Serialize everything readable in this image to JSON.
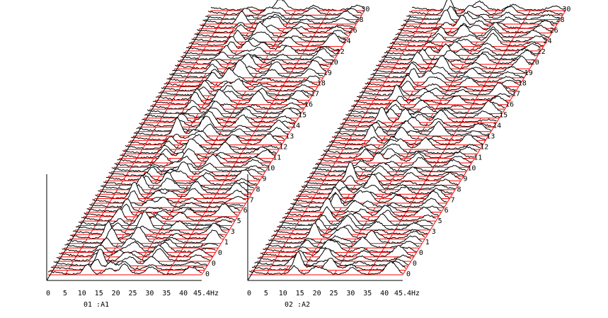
{
  "chart_data": [
    {
      "type": "line",
      "caption": "01    :A1",
      "x_unit": "Hz",
      "x_ticks": [
        "0",
        "5",
        "10",
        "15",
        "20",
        "25",
        "30",
        "35",
        "40",
        "45.4"
      ],
      "xlim": [
        0,
        45.4
      ],
      "depth_labels": [
        "0",
        "0",
        "0",
        "1",
        "3",
        "5",
        "6",
        "7",
        "8",
        "9",
        "10",
        "11",
        "12",
        "13",
        "14",
        "15",
        "16",
        "17",
        "18",
        "19",
        "20",
        "22",
        "24",
        "26",
        "28",
        "30"
      ],
      "trace_count": 60,
      "peaks_hz": [
        12.5,
        19,
        22,
        30,
        42
      ],
      "colors": {
        "trace": "#000000",
        "grid": "#ff0000",
        "axis": "#000000"
      }
    },
    {
      "type": "line",
      "caption": "02    :A2",
      "x_unit": "Hz",
      "x_ticks": [
        "0",
        "5",
        "10",
        "15",
        "20",
        "25",
        "30",
        "35",
        "40",
        "45.4"
      ],
      "xlim": [
        0,
        45.4
      ],
      "depth_labels": [
        "0",
        "0",
        "0",
        "1",
        "3",
        "5",
        "6",
        "7",
        "8",
        "9",
        "10",
        "11",
        "12",
        "13",
        "14",
        "15",
        "16",
        "17",
        "18",
        "19",
        "20",
        "22",
        "24",
        "26",
        "28",
        "30"
      ],
      "trace_count": 60,
      "peaks_hz": [
        12.5,
        19,
        22,
        30,
        42
      ],
      "colors": {
        "trace": "#000000",
        "grid": "#ff0000",
        "axis": "#000000"
      }
    }
  ]
}
